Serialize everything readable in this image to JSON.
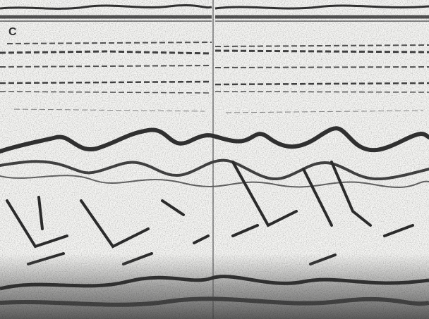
{
  "panel_label": "C"
}
